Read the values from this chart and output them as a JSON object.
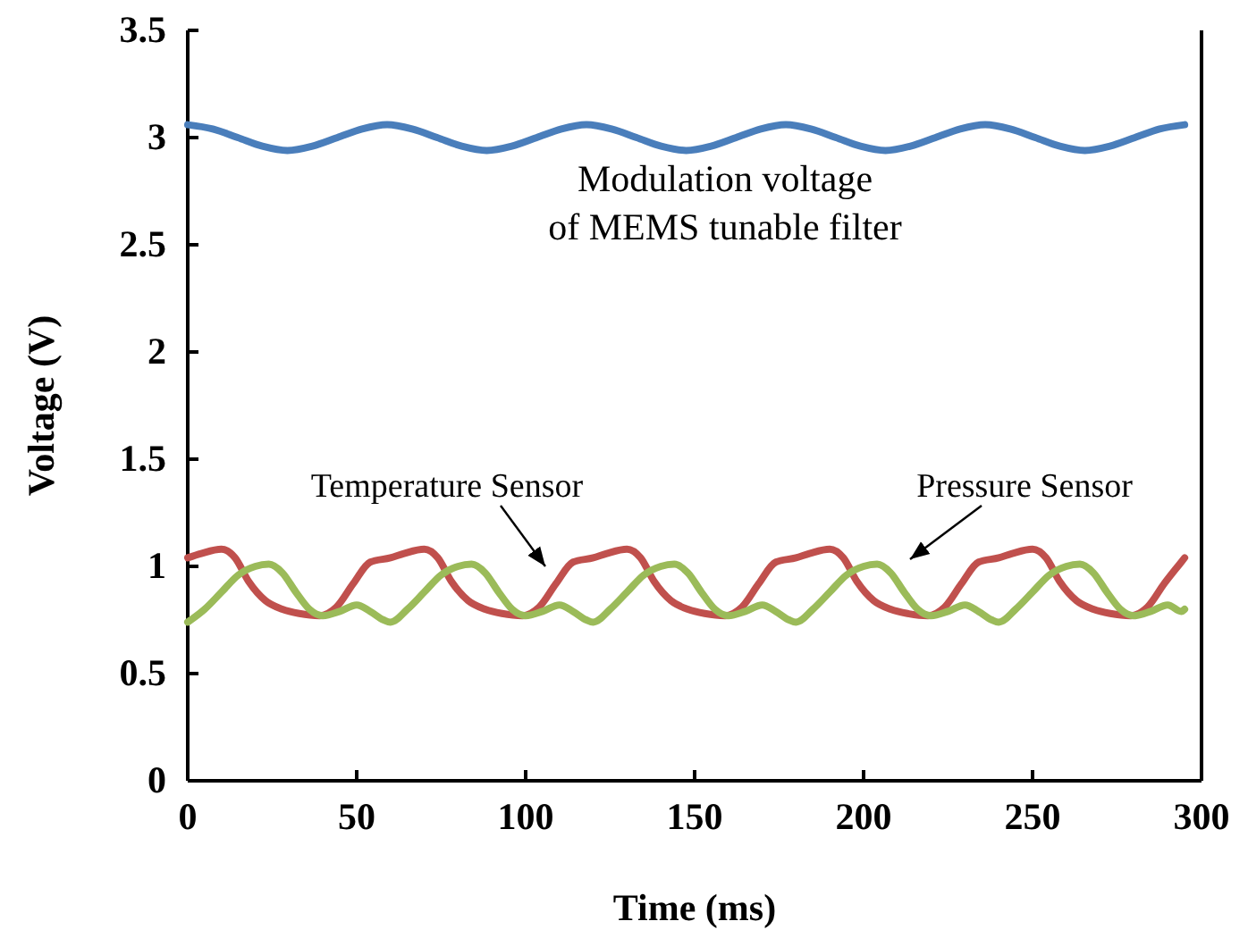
{
  "chart_data": {
    "type": "line",
    "xlabel": "Time (ms)",
    "ylabel": "Voltage (V)",
    "xlim": [
      0,
      300
    ],
    "ylim": [
      0,
      3.5
    ],
    "xticks": [
      0,
      50,
      100,
      150,
      200,
      250,
      300
    ],
    "yticks": [
      0,
      0.5,
      1,
      1.5,
      2,
      2.5,
      3,
      3.5
    ],
    "grid": false,
    "line_style": "solid",
    "marker": "none",
    "annotations": [
      "Modulation voltage\nof MEMS tunable filter",
      "Temperature Sensor",
      "Pressure Sensor"
    ],
    "series": [
      {
        "color": "#4a7ebb",
        "x": [
          0,
          7.4,
          14.8,
          22.1,
          29.5,
          36.9,
          44.3,
          51.6,
          59,
          66.4,
          73.8,
          81.1,
          88.5,
          95.9,
          103.3,
          110.6,
          118,
          125.4,
          132.8,
          140.1,
          147.5,
          154.9,
          162.3,
          169.6,
          177,
          184.4,
          191.8,
          199.1,
          206.5,
          213.9,
          221.3,
          228.6,
          236,
          243.4,
          250.8,
          258.1,
          265.5,
          272.9,
          280.3,
          287.6,
          295
        ],
        "values": [
          3.06,
          3.04,
          3.0,
          2.96,
          2.94,
          2.96,
          3.0,
          3.04,
          3.06,
          3.04,
          3.0,
          2.96,
          2.94,
          2.96,
          3.0,
          3.04,
          3.06,
          3.04,
          3.0,
          2.96,
          2.94,
          2.96,
          3.0,
          3.04,
          3.06,
          3.04,
          3.0,
          2.96,
          2.94,
          2.96,
          3.0,
          3.04,
          3.06,
          3.04,
          3.0,
          2.96,
          2.94,
          2.96,
          3.0,
          3.04,
          3.06
        ]
      },
      {
        "color": "#c0504d",
        "x": [
          0,
          4,
          10,
          14,
          18,
          23,
          28,
          33,
          39,
          44,
          49,
          54,
          60,
          64,
          70,
          74,
          78,
          83,
          88,
          93,
          99,
          104,
          109,
          114,
          120,
          124,
          130,
          134,
          138,
          143,
          148,
          153,
          159,
          164,
          169,
          174,
          180,
          184,
          190,
          194,
          198,
          203,
          208,
          213,
          219,
          224,
          229,
          234,
          240,
          244,
          250,
          254,
          258,
          263,
          268,
          273,
          279,
          284,
          289,
          294,
          295
        ],
        "values": [
          1.04,
          1.06,
          1.08,
          1.04,
          0.93,
          0.84,
          0.8,
          0.78,
          0.77,
          0.81,
          0.92,
          1.02,
          1.04,
          1.06,
          1.08,
          1.04,
          0.93,
          0.84,
          0.8,
          0.78,
          0.77,
          0.81,
          0.92,
          1.02,
          1.04,
          1.06,
          1.08,
          1.04,
          0.93,
          0.84,
          0.8,
          0.78,
          0.77,
          0.81,
          0.92,
          1.02,
          1.04,
          1.06,
          1.08,
          1.04,
          0.93,
          0.84,
          0.8,
          0.78,
          0.77,
          0.81,
          0.92,
          1.02,
          1.04,
          1.06,
          1.08,
          1.04,
          0.93,
          0.84,
          0.8,
          0.78,
          0.77,
          0.81,
          0.92,
          1.02,
          1.04
        ]
      },
      {
        "color": "#9bbb59",
        "x": [
          0,
          5,
          10,
          15,
          20,
          24,
          28,
          32,
          36,
          40,
          45,
          50,
          54,
          58,
          60,
          65,
          70,
          75,
          80,
          84,
          88,
          92,
          96,
          100,
          105,
          110,
          114,
          118,
          120,
          125,
          130,
          135,
          140,
          144,
          148,
          152,
          156,
          160,
          165,
          170,
          174,
          178,
          180,
          185,
          190,
          195,
          200,
          204,
          208,
          212,
          216,
          220,
          225,
          230,
          234,
          238,
          240,
          245,
          250,
          255,
          260,
          264,
          268,
          272,
          276,
          280,
          285,
          290,
          294,
          295
        ],
        "values": [
          0.74,
          0.8,
          0.88,
          0.96,
          1.0,
          1.01,
          0.97,
          0.88,
          0.8,
          0.77,
          0.79,
          0.82,
          0.79,
          0.75,
          0.74,
          0.8,
          0.88,
          0.96,
          1.0,
          1.01,
          0.97,
          0.88,
          0.8,
          0.77,
          0.79,
          0.82,
          0.79,
          0.75,
          0.74,
          0.8,
          0.88,
          0.96,
          1.0,
          1.01,
          0.97,
          0.88,
          0.8,
          0.77,
          0.79,
          0.82,
          0.79,
          0.75,
          0.74,
          0.8,
          0.88,
          0.96,
          1.0,
          1.01,
          0.97,
          0.88,
          0.8,
          0.77,
          0.79,
          0.82,
          0.79,
          0.75,
          0.74,
          0.8,
          0.88,
          0.96,
          1.0,
          1.01,
          0.97,
          0.88,
          0.8,
          0.77,
          0.79,
          0.82,
          0.79,
          0.8
        ]
      }
    ]
  }
}
